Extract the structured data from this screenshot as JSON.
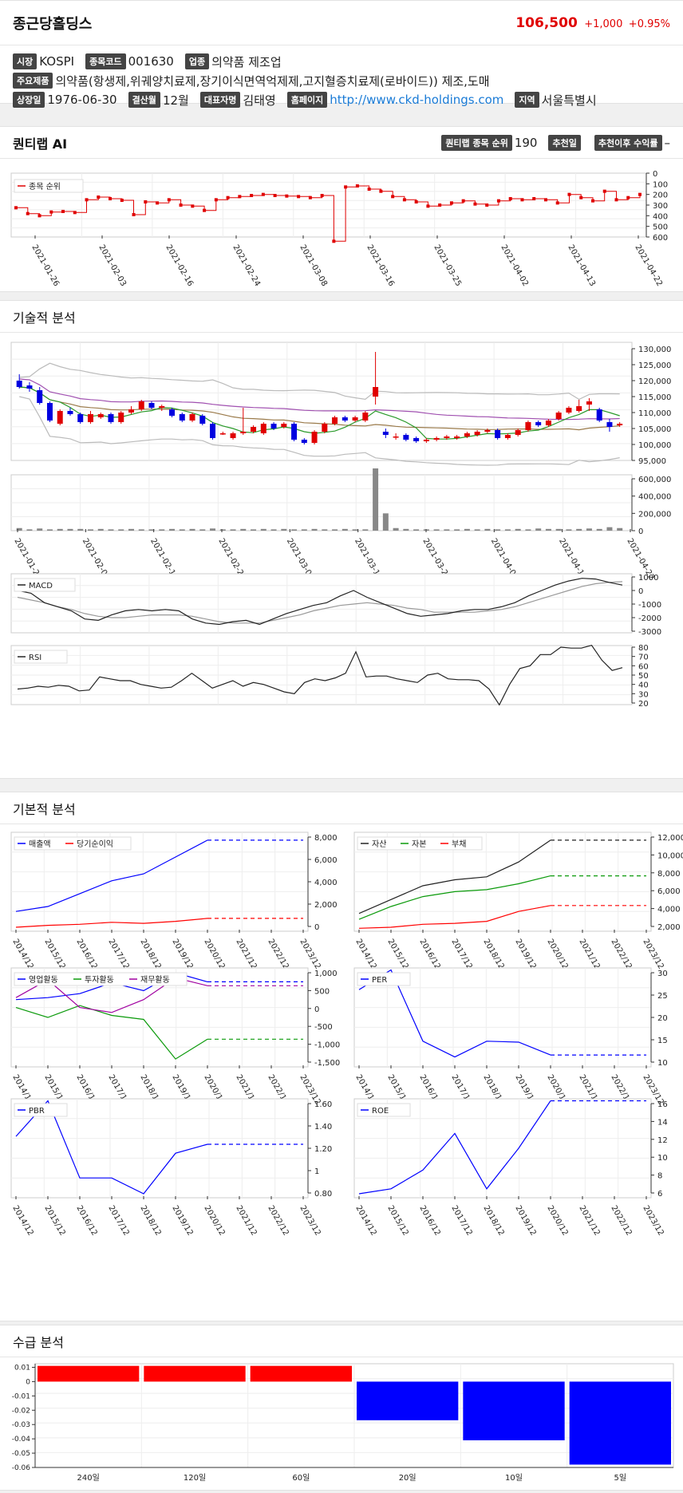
{
  "header": {
    "company": "종근당홀딩스",
    "price": "106,500",
    "change": "+1,000",
    "change_pct": "+0.95%"
  },
  "info": {
    "market_tag": "시장",
    "market": "KOSPI",
    "code_tag": "종목코드",
    "code": "001630",
    "industry_tag": "업종",
    "industry": "의약품 제조업",
    "products_tag": "주요제품",
    "products": "의약품(항생제,위궤양치료제,장기이식면역억제제,고지혈증치료제(로바이드)) 제조,도매",
    "listed_tag": "상장일",
    "listed": "1976-06-30",
    "fiscal_tag": "결산월",
    "fiscal": "12월",
    "ceo_tag": "대표자명",
    "ceo": "김태영",
    "homepage_tag": "홈페이지",
    "homepage": "http://www.ckd-holdings.com",
    "region_tag": "지역",
    "region": "서울특별시"
  },
  "ai": {
    "title": "퀀티랩 AI",
    "rank_tag": "퀀티랩 종목 순위",
    "rank": "190",
    "rec_date_tag": "추천일",
    "return_tag": "추천이후 수익률",
    "return": "–"
  },
  "sections": {
    "technical": "기술적 분석",
    "fundamental": "기본적 분석",
    "supply": "수급 분석"
  },
  "colors": {
    "up": "#e00000",
    "down": "#0000e0",
    "bar_pos": "#ff0000",
    "bar_neg": "#0000ff"
  },
  "rank_chart": {
    "legend": "종목 순위",
    "dates": [
      "2021-01-26",
      "2021-02-03",
      "2021-02-16",
      "2021-02-24",
      "2021-03-08",
      "2021-03-16",
      "2021-03-25",
      "2021-04-02",
      "2021-04-13",
      "2021-04-22"
    ],
    "y_ticks": [
      "0",
      "100",
      "200",
      "300",
      "400",
      "500",
      "600"
    ],
    "values": [
      325,
      380,
      400,
      365,
      360,
      370,
      250,
      225,
      240,
      255,
      390,
      270,
      280,
      250,
      300,
      310,
      350,
      250,
      230,
      220,
      210,
      200,
      210,
      215,
      220,
      230,
      210,
      640,
      130,
      120,
      150,
      170,
      220,
      250,
      270,
      310,
      300,
      280,
      260,
      290,
      300,
      260,
      240,
      250,
      240,
      250,
      280,
      200,
      230,
      260,
      170,
      250,
      230,
      200
    ]
  },
  "price_chart": {
    "y_ticks": [
      "130,000",
      "125,000",
      "120,000",
      "115,000",
      "110,000",
      "105,000",
      "100,000",
      "95,000"
    ],
    "vol_ticks": [
      "600,000",
      "400,000",
      "200,000",
      "0"
    ],
    "candles": [
      [
        120000,
        118000,
        122000,
        117500
      ],
      [
        118500,
        117500,
        119500,
        116500
      ],
      [
        117000,
        113000,
        118000,
        112500
      ],
      [
        113000,
        107500,
        113500,
        107000
      ],
      [
        106500,
        110500,
        111000,
        106000
      ],
      [
        110500,
        109500,
        111500,
        109000
      ],
      [
        109500,
        107000,
        110000,
        106500
      ],
      [
        107000,
        109500,
        110500,
        106500
      ],
      [
        108500,
        109500,
        110000,
        108000
      ],
      [
        109500,
        107000,
        110000,
        106500
      ],
      [
        107000,
        110000,
        110500,
        106500
      ],
      [
        110000,
        111000,
        112000,
        109500
      ],
      [
        111000,
        113500,
        114000,
        110500
      ],
      [
        113000,
        111500,
        113500,
        111000
      ],
      [
        111500,
        112000,
        112500,
        110500
      ],
      [
        111000,
        109000,
        111500,
        108500
      ],
      [
        109500,
        107500,
        110000,
        107000
      ],
      [
        107500,
        109500,
        110000,
        107000
      ],
      [
        109000,
        106500,
        109500,
        106000
      ],
      [
        106500,
        102000,
        107000,
        101500
      ],
      [
        103500,
        103500,
        104000,
        103000
      ],
      [
        102000,
        103500,
        104000,
        101500
      ],
      [
        103500,
        104000,
        111500,
        103000
      ],
      [
        104000,
        105500,
        106000,
        103500
      ],
      [
        103500,
        106500,
        107000,
        103000
      ],
      [
        106500,
        105000,
        107000,
        104500
      ],
      [
        105500,
        106500,
        107000,
        105000
      ],
      [
        106500,
        101500,
        107000,
        101000
      ],
      [
        101500,
        100500,
        102000,
        100000
      ],
      [
        100500,
        104000,
        104500,
        100000
      ],
      [
        104000,
        106500,
        107000,
        103500
      ],
      [
        106500,
        108500,
        109000,
        106000
      ],
      [
        108500,
        107500,
        109000,
        107000
      ],
      [
        107500,
        108500,
        109000,
        107000
      ],
      [
        107500,
        110000,
        110500,
        107000
      ],
      [
        115000,
        118000,
        129000,
        112500
      ],
      [
        104000,
        103000,
        105000,
        102000
      ],
      [
        102500,
        102500,
        103500,
        101500
      ],
      [
        103000,
        101500,
        103500,
        101000
      ],
      [
        102000,
        101000,
        102500,
        100500
      ],
      [
        101000,
        101500,
        102000,
        100500
      ],
      [
        101500,
        102000,
        102500,
        101000
      ],
      [
        102000,
        102500,
        103000,
        101500
      ],
      [
        102000,
        102500,
        103000,
        101500
      ],
      [
        102500,
        103500,
        104000,
        102000
      ],
      [
        103000,
        104000,
        104500,
        102500
      ],
      [
        104000,
        104500,
        105000,
        103500
      ],
      [
        104500,
        102000,
        105000,
        101500
      ],
      [
        102000,
        103000,
        103500,
        101500
      ],
      [
        103000,
        104500,
        105000,
        102500
      ],
      [
        104500,
        107000,
        107500,
        104000
      ],
      [
        107000,
        106000,
        107500,
        105500
      ],
      [
        106000,
        107500,
        108000,
        105500
      ],
      [
        108000,
        110000,
        110500,
        107500
      ],
      [
        110000,
        111500,
        112000,
        109500
      ],
      [
        110500,
        112000,
        114000,
        110000
      ],
      [
        112500,
        113500,
        114500,
        110500
      ],
      [
        111000,
        107500,
        111500,
        107000
      ],
      [
        107000,
        105500,
        108000,
        104000
      ],
      [
        106000,
        106500,
        107000,
        105500
      ]
    ],
    "volumes": [
      30,
      15,
      25,
      15,
      20,
      20,
      20,
      15,
      20,
      15,
      15,
      20,
      15,
      15,
      15,
      20,
      15,
      20,
      15,
      25,
      15,
      15,
      20,
      15,
      20,
      15,
      20,
      15,
      15,
      20,
      15,
      15,
      20,
      15,
      15,
      720,
      200,
      30,
      20,
      15,
      15,
      15,
      15,
      15,
      20,
      15,
      20,
      15,
      15,
      20,
      15,
      25,
      20,
      20,
      15,
      20,
      25,
      20,
      40,
      30
    ]
  },
  "macd_chart": {
    "legend": "MACD",
    "y_ticks": [
      "1000",
      "0",
      "-1000",
      "-2000",
      "-3000"
    ]
  },
  "rsi_chart": {
    "legend": "RSI",
    "y_ticks": [
      "80",
      "70",
      "60",
      "50",
      "40",
      "30",
      "20"
    ]
  },
  "fundamental": {
    "years": [
      "2014/12",
      "2015/12",
      "2016/12",
      "2017/12",
      "2018/12",
      "2019/12",
      "2020/12",
      "2021/12",
      "2022/12",
      "2023/12"
    ],
    "sales": {
      "legend1": "매출액",
      "legend2": "당기순이익",
      "y_ticks": [
        "8,000",
        "6,000",
        "4,000",
        "2,000",
        "0"
      ]
    },
    "balance": {
      "legend1": "자산",
      "legend2": "자본",
      "legend3": "부채",
      "y_ticks": [
        "12,000",
        "10,000",
        "8,000",
        "6,000",
        "4,000",
        "2,000"
      ]
    },
    "cashflow": {
      "legend1": "영업활동",
      "legend2": "투자활동",
      "legend3": "재무활동",
      "y_ticks": [
        "1,000",
        "500",
        "0",
        "-500",
        "-1,000",
        "-1,500"
      ]
    },
    "per": {
      "legend": "PER",
      "y_ticks": [
        "30",
        "25",
        "20",
        "15",
        "10"
      ]
    },
    "pbr": {
      "legend": "PBR",
      "y_ticks": [
        "1.60",
        "1.40",
        "1.20",
        "1",
        "0.80"
      ]
    },
    "roe": {
      "legend": "ROE",
      "y_ticks": [
        "16",
        "14",
        "12",
        "10",
        "8",
        "6"
      ]
    }
  },
  "supply_chart": {
    "y_ticks": [
      "0.01",
      "0",
      "-0.01",
      "-0.02",
      "-0.03",
      "-0.04",
      "-0.05",
      "-0.06"
    ],
    "categories": [
      "240일",
      "120일",
      "60일",
      "20일",
      "10일",
      "5일"
    ],
    "values": [
      0.011,
      0.011,
      0.011,
      -0.027,
      -0.041,
      -0.058
    ]
  }
}
